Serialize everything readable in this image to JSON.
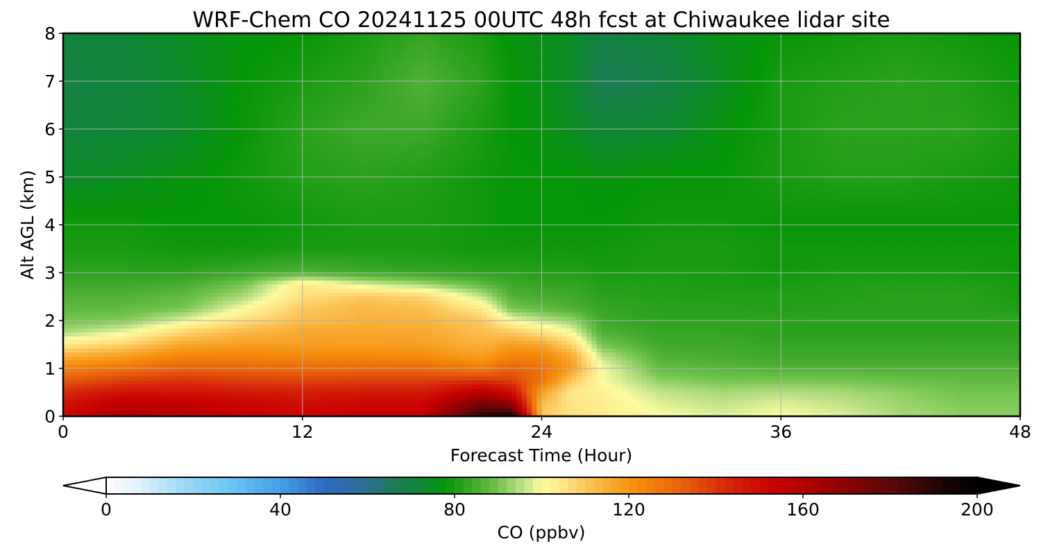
{
  "chart_data": {
    "type": "heatmap",
    "title": "WRF-Chem CO  20241125 00UTC 48h fcst at Chiwaukee lidar site",
    "xlabel": "Forecast Time (Hour)",
    "ylabel": "Alt AGL (km)",
    "xlim": [
      0,
      48
    ],
    "ylim": [
      0,
      8
    ],
    "x_ticks": [
      "0",
      "12",
      "24",
      "36",
      "48"
    ],
    "y_ticks": [
      "0",
      "1",
      "2",
      "3",
      "4",
      "5",
      "6",
      "7",
      "8"
    ],
    "grid": true,
    "x": [
      0,
      3,
      6,
      9,
      12,
      15,
      18,
      21,
      22.5,
      24,
      25.5,
      27,
      30,
      33,
      36,
      39,
      42,
      45,
      48
    ],
    "y": [
      0,
      0.25,
      0.5,
      0.75,
      1.0,
      1.25,
      1.5,
      1.75,
      2.0,
      2.25,
      2.5,
      2.75,
      3.0,
      3.5,
      4.0,
      5.0,
      6.0,
      7.0,
      8.0
    ],
    "z": [
      [
        152,
        160,
        158,
        155,
        152,
        155,
        155,
        190,
        196,
        110,
        105,
        103,
        100,
        98,
        100,
        98,
        94,
        92,
        92
      ],
      [
        148,
        158,
        156,
        153,
        150,
        152,
        152,
        175,
        168,
        112,
        105,
        103,
        98,
        96,
        98,
        96,
        93,
        91,
        91
      ],
      [
        142,
        148,
        148,
        146,
        145,
        146,
        146,
        158,
        150,
        118,
        104,
        102,
        96,
        94,
        95,
        94,
        92,
        90,
        90
      ],
      [
        134,
        138,
        140,
        138,
        137,
        138,
        138,
        140,
        138,
        128,
        110,
        100,
        92,
        90,
        90,
        90,
        89,
        88,
        88
      ],
      [
        124,
        128,
        132,
        131,
        130,
        130,
        130,
        126,
        132,
        128,
        118,
        100,
        88,
        87,
        86,
        86,
        86,
        86,
        86
      ],
      [
        115,
        118,
        124,
        124,
        123,
        123,
        122,
        118,
        124,
        124,
        116,
        96,
        86,
        85,
        84,
        84,
        84,
        84,
        84
      ],
      [
        104,
        108,
        116,
        118,
        118,
        118,
        118,
        114,
        118,
        116,
        108,
        90,
        84,
        84,
        83,
        83,
        83,
        83,
        83
      ],
      [
        94,
        99,
        108,
        113,
        116,
        117,
        116,
        112,
        110,
        106,
        100,
        86,
        83,
        83,
        82,
        82,
        82,
        82,
        82
      ],
      [
        90,
        91,
        98,
        106,
        112,
        114,
        114,
        110,
        100,
        96,
        93,
        84,
        82,
        82,
        82,
        82,
        82,
        82,
        82
      ],
      [
        88,
        88,
        90,
        100,
        110,
        113,
        112,
        104,
        90,
        88,
        86,
        83,
        82,
        82,
        81,
        82,
        82,
        82,
        81
      ],
      [
        86,
        86,
        88,
        94,
        106,
        110,
        108,
        96,
        86,
        85,
        84,
        82,
        81,
        81,
        81,
        81,
        82,
        82,
        80
      ],
      [
        84,
        84,
        85,
        90,
        104,
        98,
        94,
        88,
        84,
        83,
        83,
        81,
        81,
        80,
        80,
        81,
        81,
        81,
        80
      ],
      [
        82,
        82,
        82,
        84,
        86,
        84,
        83,
        82,
        82,
        81,
        81,
        80,
        80,
        80,
        79,
        80,
        80,
        80,
        79
      ],
      [
        80,
        80,
        79,
        79,
        80,
        80,
        80,
        79,
        79,
        79,
        79,
        79,
        80,
        80,
        79,
        79,
        79,
        79,
        79
      ],
      [
        79,
        79,
        78,
        78,
        79,
        80,
        80,
        79,
        78,
        78,
        78,
        78,
        79,
        79,
        78,
        78,
        78,
        78,
        78
      ],
      [
        74,
        75,
        77,
        79,
        81,
        82,
        81,
        79,
        78,
        78,
        78,
        77,
        78,
        78,
        80,
        81,
        81,
        80,
        79
      ],
      [
        71,
        72,
        74,
        78,
        82,
        84,
        84,
        80,
        78,
        77,
        75,
        72,
        73,
        77,
        80,
        82,
        82,
        82,
        80
      ],
      [
        70,
        71,
        74,
        78,
        80,
        82,
        86,
        82,
        78,
        76,
        74,
        67,
        69,
        75,
        80,
        81,
        82,
        81,
        79
      ],
      [
        71,
        72,
        75,
        77,
        78,
        80,
        83,
        80,
        77,
        76,
        75,
        70,
        72,
        76,
        78,
        79,
        80,
        79,
        78
      ]
    ],
    "colorbar": {
      "label": "CO  (ppbv)",
      "range": [
        0,
        200
      ],
      "extend": "both",
      "ticks": [
        "0",
        "40",
        "80",
        "120",
        "160",
        "200"
      ],
      "stops": [
        {
          "v": 0,
          "c": "#ffffff"
        },
        {
          "v": 8,
          "c": "#dff2fc"
        },
        {
          "v": 16,
          "c": "#a6dcf5"
        },
        {
          "v": 28,
          "c": "#6ec6f3"
        },
        {
          "v": 40,
          "c": "#42a0e6"
        },
        {
          "v": 50,
          "c": "#2f6ac5"
        },
        {
          "v": 58,
          "c": "#2f6d9e"
        },
        {
          "v": 66,
          "c": "#1e7a5a"
        },
        {
          "v": 74,
          "c": "#0a8a2a"
        },
        {
          "v": 78,
          "c": "#069606"
        },
        {
          "v": 84,
          "c": "#3ea82a"
        },
        {
          "v": 90,
          "c": "#74c44e"
        },
        {
          "v": 96,
          "c": "#c2e48a"
        },
        {
          "v": 100,
          "c": "#fdfca0"
        },
        {
          "v": 106,
          "c": "#fde07e"
        },
        {
          "v": 114,
          "c": "#f9b23c"
        },
        {
          "v": 122,
          "c": "#f58c0a"
        },
        {
          "v": 132,
          "c": "#e8620c"
        },
        {
          "v": 144,
          "c": "#d22008"
        },
        {
          "v": 154,
          "c": "#c80000"
        },
        {
          "v": 166,
          "c": "#9a0000"
        },
        {
          "v": 180,
          "c": "#5c0808"
        },
        {
          "v": 194,
          "c": "#140404"
        },
        {
          "v": 200,
          "c": "#000000"
        }
      ]
    }
  }
}
